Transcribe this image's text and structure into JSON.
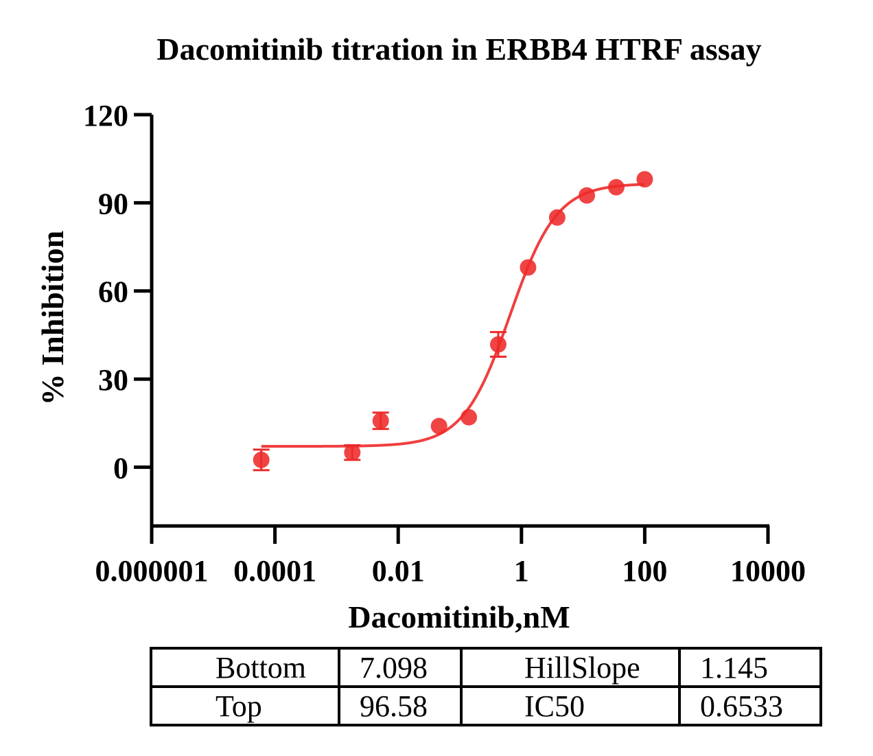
{
  "colors": {
    "series": "#ee2a2a",
    "axis": "#000000",
    "background": "#ffffff"
  },
  "chart_data": {
    "type": "scatter",
    "title": "Dacomitinib titration in ERBB4 HTRF assay",
    "xlabel": "Dacomitinib,nM",
    "ylabel": "% Inhibition",
    "xscale": "log10",
    "xlim": [
      1e-06,
      10000
    ],
    "ylim": [
      -20,
      120
    ],
    "x_ticks": [
      1e-06,
      0.0001,
      0.01,
      1,
      100,
      10000
    ],
    "x_tick_labels": [
      "0.000001",
      "0.0001",
      "0.01",
      "1",
      "100",
      "10000"
    ],
    "y_ticks": [
      0,
      30,
      60,
      90,
      120
    ],
    "y_tick_labels": [
      "0",
      "30",
      "60",
      "90",
      "120"
    ],
    "grid": false,
    "legend": "none",
    "series": [
      {
        "x": [
          6e-05,
          0.0018,
          0.0052,
          0.046,
          0.14,
          0.42,
          1.28,
          3.8,
          11.5,
          34.5,
          100
        ],
        "y": [
          2.5,
          5.0,
          15.8,
          14.0,
          17.0,
          41.8,
          68.0,
          85.0,
          92.5,
          95.3,
          98.0
        ],
        "error": [
          3.5,
          2.5,
          2.8,
          1.0,
          1.0,
          4.2,
          1.0,
          1.0,
          1.0,
          1.0,
          1.0
        ]
      }
    ],
    "fit": {
      "model": "four-parameter logistic",
      "x_range": [
        6e-05,
        100
      ],
      "bottom": 7.098,
      "top": 96.58,
      "hillslope": 1.145,
      "ic50": 0.6533
    }
  },
  "params_table": {
    "rows": [
      {
        "name1": "Bottom",
        "value1": "7.098",
        "name2": "HillSlope",
        "value2": "1.145"
      },
      {
        "name1": "Top",
        "value1": "96.58",
        "name2": "IC50",
        "value2": "0.6533"
      }
    ]
  }
}
